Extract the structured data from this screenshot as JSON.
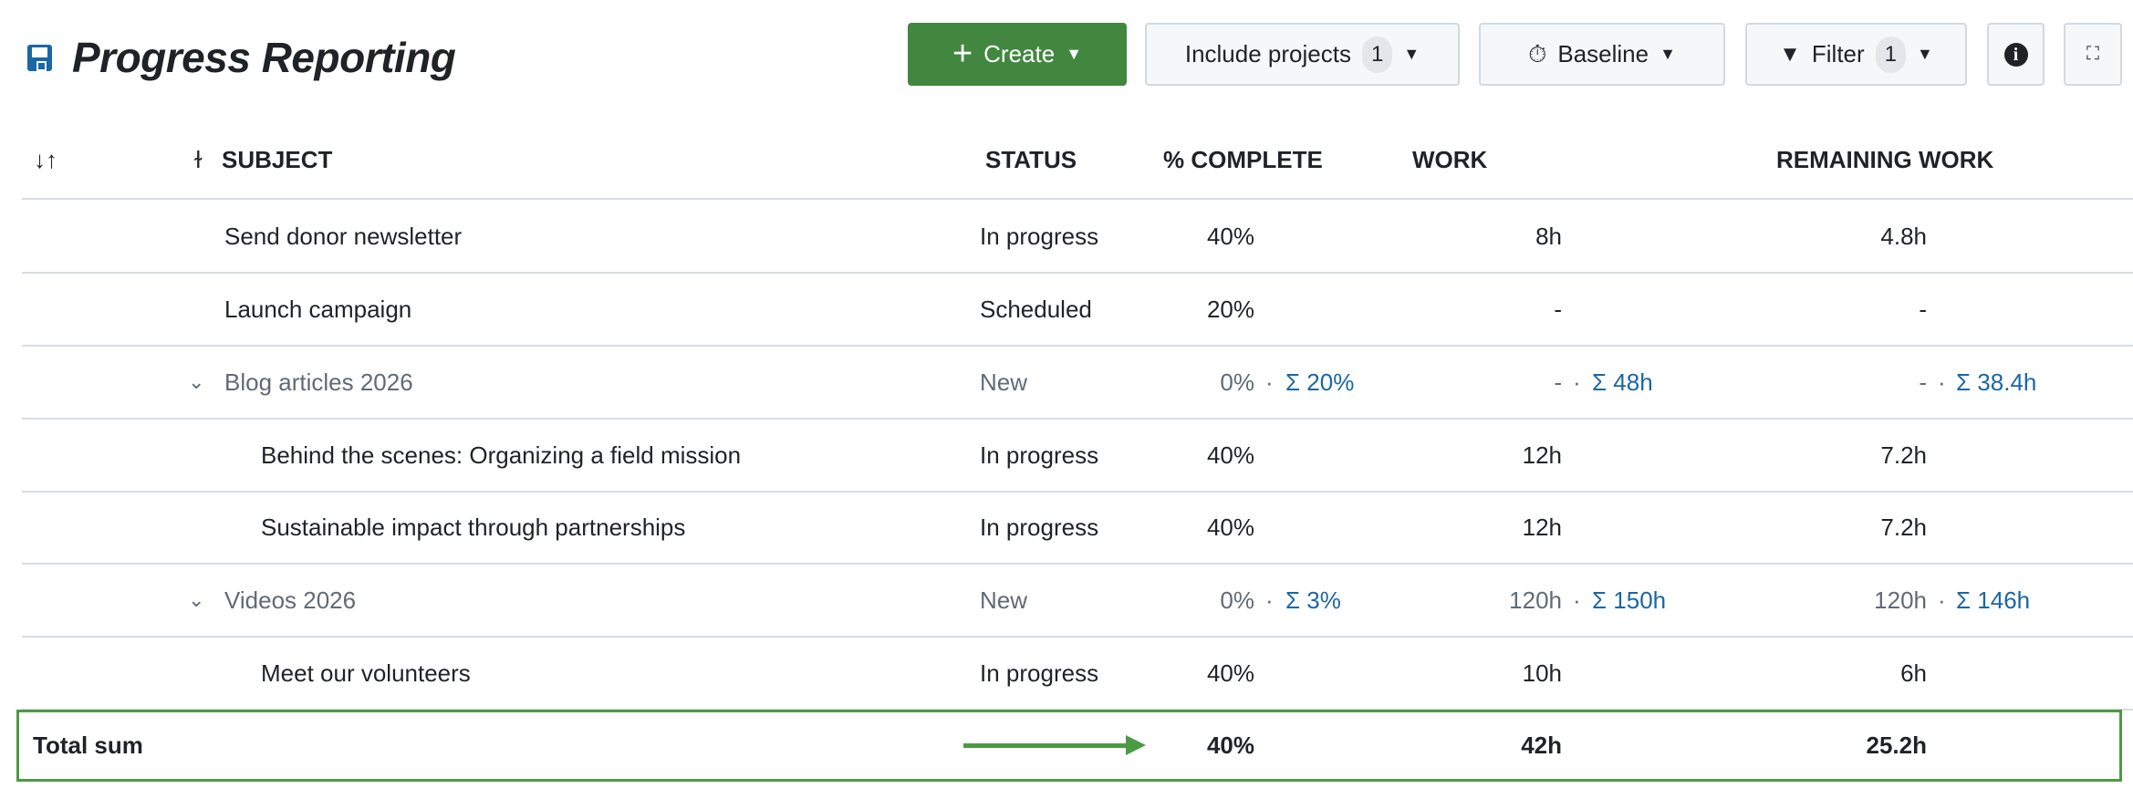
{
  "header": {
    "title": "Progress Reporting",
    "create": "Create",
    "include_projects": "Include projects",
    "include_count": "1",
    "baseline": "Baseline",
    "filter": "Filter",
    "filter_count": "1"
  },
  "columns": {
    "subject": "SUBJECT",
    "status": "STATUS",
    "complete": "% COMPLETE",
    "work": "WORK",
    "remaining": "REMAINING WORK"
  },
  "rows": [
    {
      "subject": "Send donor newsletter",
      "status": "In progress",
      "complete": "40%",
      "work": "8h",
      "remaining": "4.8h",
      "level": 1
    },
    {
      "subject": "Launch campaign",
      "status": "Scheduled",
      "complete": "20%",
      "work": "-",
      "remaining": "-",
      "level": 1
    },
    {
      "subject": "Blog articles 2026",
      "status": "New",
      "complete": "0%",
      "complete_sum": "Σ 20%",
      "work": "-",
      "work_sum": "Σ 48h",
      "remaining": "-",
      "remaining_sum": "Σ 38.4h",
      "level": 1,
      "parent": true
    },
    {
      "subject": "Behind the scenes: Organizing a field mission",
      "status": "In progress",
      "complete": "40%",
      "work": "12h",
      "remaining": "7.2h",
      "level": 2
    },
    {
      "subject": "Sustainable impact through partnerships",
      "status": "In progress",
      "complete": "40%",
      "work": "12h",
      "remaining": "7.2h",
      "level": 2
    },
    {
      "subject": "Videos 2026",
      "status": "New",
      "complete": "0%",
      "complete_sum": "Σ 3%",
      "work": "120h",
      "work_sum": "Σ 150h",
      "remaining": "120h",
      "remaining_sum": "Σ 146h",
      "level": 1,
      "parent": true
    },
    {
      "subject": "Meet our volunteers",
      "status": "In progress",
      "complete": "40%",
      "work": "10h",
      "remaining": "6h",
      "level": 2
    }
  ],
  "total": {
    "label": "Total sum",
    "complete": "40%",
    "work": "42h",
    "remaining": "25.2h"
  },
  "colors": {
    "accent": "#41873f",
    "sum": "#1a67a3",
    "highlight": "#4d9a45"
  }
}
